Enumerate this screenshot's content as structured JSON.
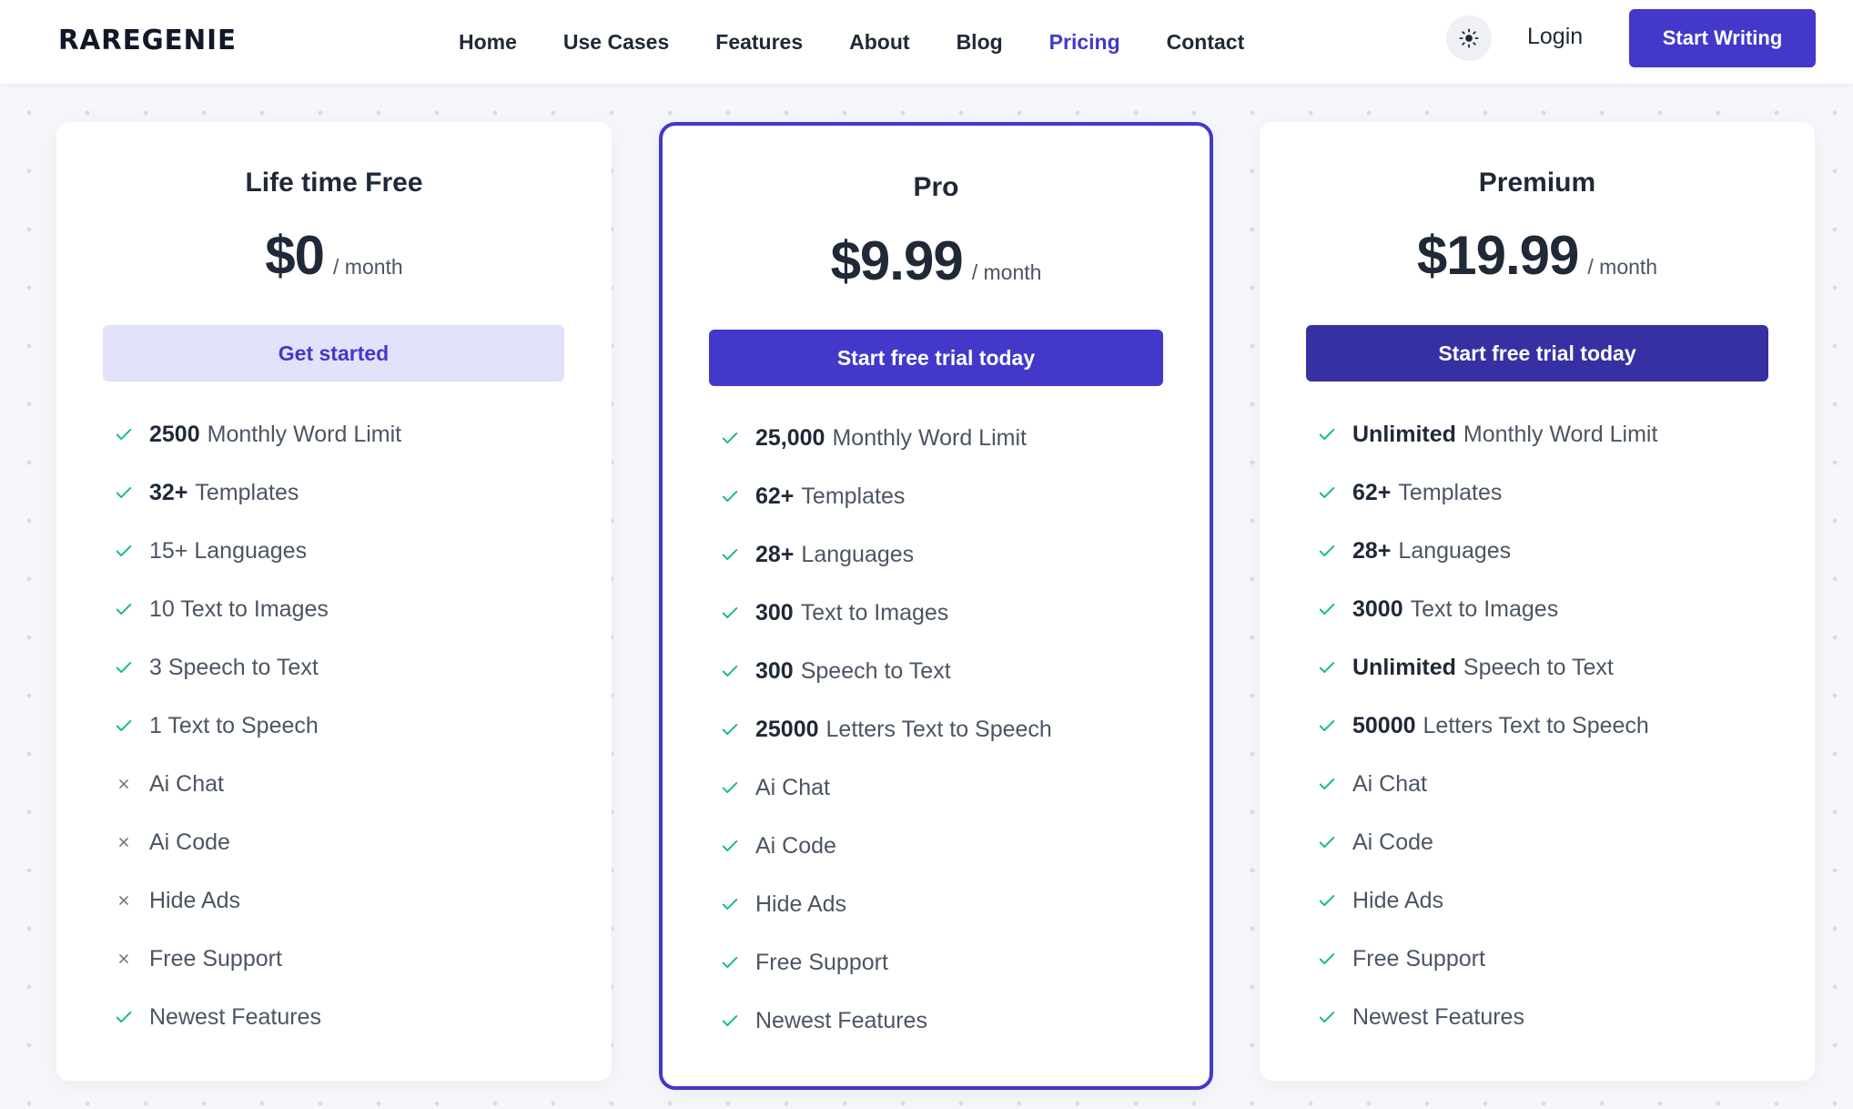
{
  "brand": {
    "name": "RAREGENIE",
    "accent_color": "#4338ca",
    "text_color": "#111827"
  },
  "nav": {
    "links": [
      {
        "label": "Home"
      },
      {
        "label": "Use Cases"
      },
      {
        "label": "Features"
      },
      {
        "label": "About"
      },
      {
        "label": "Blog"
      },
      {
        "label": "Pricing",
        "active": true
      },
      {
        "label": "Contact"
      }
    ],
    "theme_toggle_icon": "sun-icon",
    "login_label": "Login",
    "cta_label": "Start Writing"
  },
  "plans": [
    {
      "name": "Life time Free",
      "price": "$0",
      "period": "/ month",
      "cta": "Get started",
      "cta_style": "light",
      "features": [
        {
          "bold": "2500",
          "text": "Monthly Word Limit",
          "included": true
        },
        {
          "bold": "32+",
          "text": "Templates",
          "included": true
        },
        {
          "bold": "",
          "text": "15+ Languages",
          "included": true
        },
        {
          "bold": "",
          "text": "10 Text to Images",
          "included": true
        },
        {
          "bold": "",
          "text": "3 Speech to Text",
          "included": true
        },
        {
          "bold": "",
          "text": "1 Text to Speech",
          "included": true
        },
        {
          "bold": "",
          "text": "Ai Chat",
          "included": false
        },
        {
          "bold": "",
          "text": "Ai Code",
          "included": false
        },
        {
          "bold": "",
          "text": "Hide Ads",
          "included": false
        },
        {
          "bold": "",
          "text": "Free Support",
          "included": false
        },
        {
          "bold": "",
          "text": "Newest Features",
          "included": true
        }
      ]
    },
    {
      "name": "Pro",
      "price": "$9.99",
      "period": "/ month",
      "cta": "Start free trial today",
      "cta_style": "primary",
      "featured": true,
      "features": [
        {
          "bold": "25,000",
          "text": "Monthly Word Limit",
          "included": true
        },
        {
          "bold": "62+",
          "text": "Templates",
          "included": true
        },
        {
          "bold": "28+",
          "text": "Languages",
          "included": true
        },
        {
          "bold": "300",
          "text": "Text to Images",
          "included": true
        },
        {
          "bold": "300",
          "text": "Speech to Text",
          "included": true
        },
        {
          "bold": "25000",
          "text": "Letters Text to Speech",
          "included": true
        },
        {
          "bold": "",
          "text": "Ai Chat",
          "included": true
        },
        {
          "bold": "",
          "text": "Ai Code",
          "included": true
        },
        {
          "bold": "",
          "text": "Hide Ads",
          "included": true
        },
        {
          "bold": "",
          "text": "Free Support",
          "included": true
        },
        {
          "bold": "",
          "text": "Newest Features",
          "included": true
        }
      ]
    },
    {
      "name": "Premium",
      "price": "$19.99",
      "period": "/ month",
      "cta": "Start free trial today",
      "cta_style": "dark",
      "features": [
        {
          "bold": "Unlimited",
          "text": "Monthly Word Limit",
          "included": true
        },
        {
          "bold": "62+",
          "text": "Templates",
          "included": true
        },
        {
          "bold": "28+",
          "text": "Languages",
          "included": true
        },
        {
          "bold": "3000",
          "text": "Text to Images",
          "included": true
        },
        {
          "bold": "Unlimited",
          "text": "Speech to Text",
          "included": true
        },
        {
          "bold": "50000",
          "text": "Letters Text to Speech",
          "included": true
        },
        {
          "bold": "",
          "text": "Ai Chat",
          "included": true
        },
        {
          "bold": "",
          "text": "Ai Code",
          "included": true
        },
        {
          "bold": "",
          "text": "Hide Ads",
          "included": true
        },
        {
          "bold": "",
          "text": "Free Support",
          "included": true
        },
        {
          "bold": "",
          "text": "Newest Features",
          "included": true
        }
      ]
    }
  ],
  "colors": {
    "primary": "#4338ca",
    "primary_dark": "#3730a3",
    "primary_light": "#e2e2fa",
    "check": "#10b981",
    "cross": "#6b7280"
  }
}
